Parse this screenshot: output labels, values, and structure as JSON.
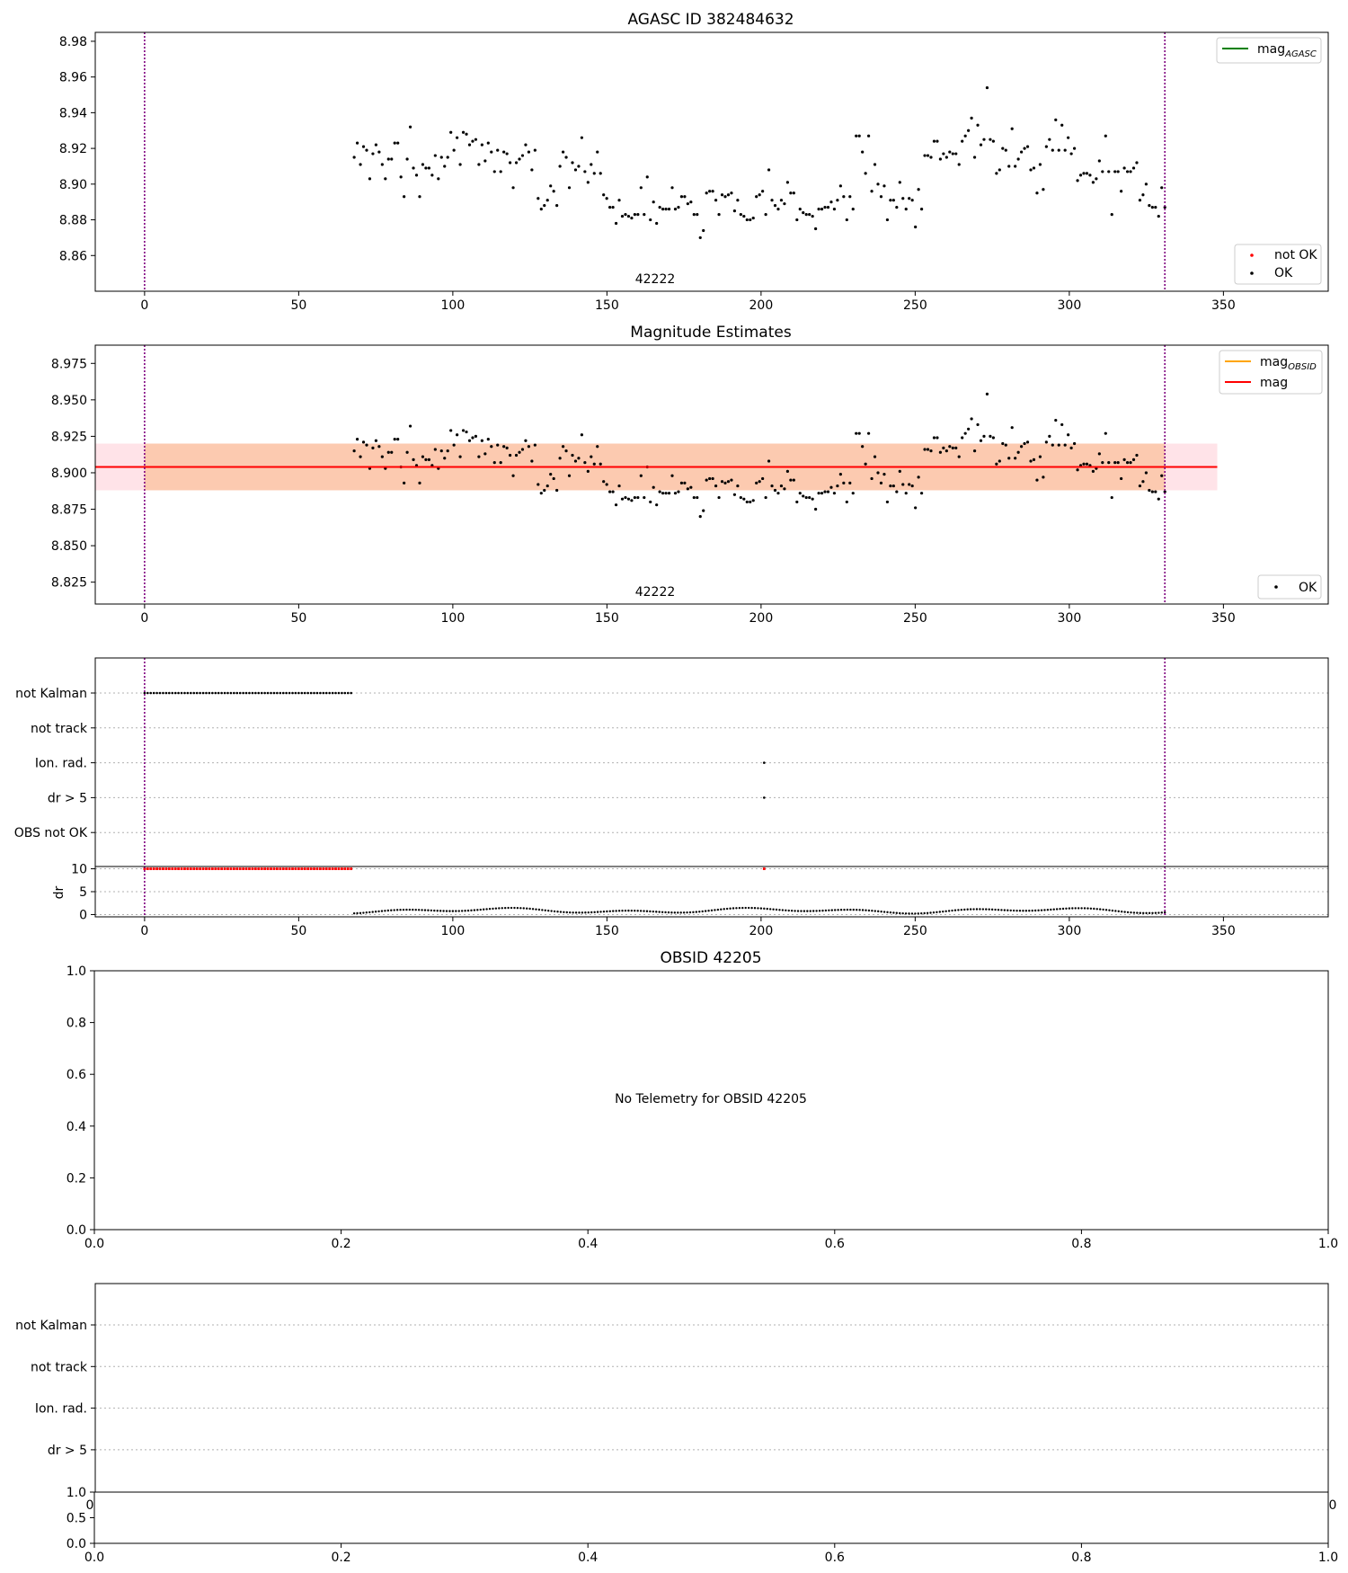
{
  "colors": {
    "ok": "#000000",
    "not_ok": "#ff0000",
    "mag_agasc": "#008000",
    "mag_obsid": "#ffa500",
    "mag": "#ff0000",
    "obs_band": "#fbbf98",
    "overall_band": "#ffe3e8",
    "vline": "#800080",
    "grid": "#b0b0b0"
  },
  "panel1": {
    "title": "AGASC ID 382484632",
    "obsid_label": "42222",
    "legend_line": {
      "text": "mag",
      "sub": "AGASC",
      "color_key": "mag_agasc"
    },
    "legend_points": [
      "not OK",
      "OK"
    ],
    "xticks": [
      "0",
      "50",
      "100",
      "150",
      "200",
      "250",
      "300",
      "350"
    ],
    "yticks": [
      "8.86",
      "8.88",
      "8.90",
      "8.92",
      "8.94",
      "8.96",
      "8.98"
    ]
  },
  "panel2": {
    "title": "Magnitude Estimates",
    "obsid_label": "42222",
    "legend_lines": [
      {
        "text": "mag",
        "sub": "OBSID",
        "color_key": "mag_obsid"
      },
      {
        "text": "mag",
        "sub": "",
        "color_key": "mag"
      }
    ],
    "legend_points": [
      "OK"
    ],
    "xticks": [
      "0",
      "50",
      "100",
      "150",
      "200",
      "250",
      "300",
      "350"
    ],
    "yticks": [
      "8.825",
      "8.850",
      "8.875",
      "8.900",
      "8.925",
      "8.950",
      "8.975"
    ]
  },
  "panel3": {
    "flags": [
      "not Kalman",
      "not track",
      "Ion. rad.",
      "dr > 5",
      "OBS not OK"
    ],
    "dr_label": "dr",
    "dr_yticks": [
      "0",
      "5",
      "10"
    ],
    "xticks": [
      "0",
      "50",
      "100",
      "150",
      "200",
      "250",
      "300",
      "350"
    ]
  },
  "panel4": {
    "title": "OBSID 42205",
    "message": "No Telemetry for OBSID 42205",
    "xticks": [
      "0.0",
      "0.2",
      "0.4",
      "0.6",
      "0.8",
      "1.0"
    ],
    "yticks": [
      "0.0",
      "0.2",
      "0.4",
      "0.6",
      "0.8",
      "1.0"
    ]
  },
  "panel5": {
    "flags": [
      "not Kalman",
      "not track",
      "Ion. rad.",
      "dr > 5"
    ],
    "overlap_tick_left": "0",
    "overlap_tick_right": "0",
    "yticks_bottom": [
      "0.0",
      "0.5",
      "1.0"
    ],
    "xticks": [
      "0.0",
      "0.2",
      "0.4",
      "0.6",
      "0.8",
      "1.0"
    ]
  },
  "chart_data": [
    {
      "type": "scatter",
      "title": "AGASC ID 382484632",
      "xlim": [
        -16,
        384
      ],
      "ylim": [
        8.84,
        8.985
      ],
      "vlines": [
        0,
        331
      ],
      "annotation": "42222",
      "series": [
        {
          "name": "OK",
          "x_start": 68,
          "x_end": 331,
          "y": [
            8.915,
            8.923,
            8.911,
            8.921,
            8.919,
            8.903,
            8.917,
            8.922,
            8.918,
            8.911,
            8.903,
            8.914,
            8.914,
            8.923,
            8.923,
            8.904,
            8.893,
            8.914,
            8.932,
            8.909,
            8.905,
            8.893,
            8.911,
            8.909,
            8.909,
            8.905,
            8.916,
            8.903,
            8.915,
            8.91,
            8.915,
            8.929,
            8.919,
            8.926,
            8.911,
            8.929,
            8.928,
            8.922,
            8.924,
            8.925,
            8.911,
            8.922,
            8.913,
            8.923,
            8.918,
            8.907,
            8.919,
            8.907,
            8.918,
            8.917,
            8.912,
            8.898,
            8.912,
            8.914,
            8.916,
            8.922,
            8.918,
            8.908,
            8.919,
            8.892,
            8.886,
            8.888,
            8.891,
            8.899,
            8.896,
            8.888,
            8.91,
            8.918,
            8.915,
            8.898,
            8.912,
            8.908,
            8.91,
            8.926,
            8.907,
            8.901,
            8.911,
            8.906,
            8.918,
            8.906,
            8.894,
            8.892,
            8.887,
            8.887,
            8.878,
            8.891,
            8.882,
            8.883,
            8.882,
            8.881,
            8.883,
            8.883,
            8.898,
            8.883,
            8.904,
            8.88,
            8.89,
            8.878,
            8.887,
            8.886,
            8.886,
            8.886,
            8.898,
            8.886,
            8.887,
            8.893,
            8.893,
            8.889,
            8.89,
            8.883,
            8.883,
            8.87,
            8.874,
            8.895,
            8.896,
            8.896,
            8.891,
            8.883,
            8.894,
            8.893,
            8.894,
            8.895,
            8.885,
            8.891,
            8.883,
            8.882,
            8.88,
            8.88,
            8.881,
            8.893,
            8.894,
            8.896,
            8.883,
            8.908,
            8.891,
            8.888,
            8.886,
            8.891,
            8.889,
            8.901,
            8.895,
            8.895,
            8.88,
            8.886,
            8.884,
            8.883,
            8.883,
            8.882,
            8.875,
            8.886,
            8.886,
            8.887,
            8.887,
            8.89,
            8.886,
            8.891,
            8.899,
            8.893,
            8.88,
            8.893,
            8.886,
            8.927,
            8.927,
            8.918,
            8.906,
            8.927,
            8.896,
            8.911,
            8.9,
            8.893,
            8.899,
            8.88,
            8.891,
            8.891,
            8.887,
            8.901,
            8.892,
            8.886,
            8.892,
            8.891,
            8.876,
            8.897,
            8.886,
            8.916,
            8.916,
            8.915,
            8.924,
            8.924,
            8.914,
            8.917,
            8.915,
            8.918,
            8.917,
            8.917,
            8.911,
            8.924,
            8.927,
            8.93,
            8.937,
            8.915,
            8.933,
            8.922,
            8.925,
            8.954,
            8.925,
            8.924,
            8.906,
            8.908,
            8.92,
            8.919,
            8.91,
            8.931,
            8.91,
            8.914,
            8.918,
            8.92,
            8.921,
            8.908,
            8.909,
            8.895,
            8.911,
            8.897,
            8.921,
            8.925,
            8.919,
            8.936,
            8.919,
            8.933,
            8.919,
            8.926,
            8.917,
            8.92,
            8.902,
            8.905,
            8.906,
            8.906,
            8.905,
            8.901,
            8.903,
            8.913,
            8.907,
            8.927,
            8.907,
            8.883,
            8.907,
            8.907,
            8.896,
            8.909,
            8.907,
            8.907,
            8.909,
            8.912,
            8.891,
            8.894,
            8.9,
            8.888,
            8.887,
            8.887,
            8.882,
            8.898,
            8.887
          ]
        },
        {
          "name": "not OK",
          "x": [],
          "y": []
        }
      ]
    },
    {
      "type": "scatter",
      "title": "Magnitude Estimates",
      "xlim": [
        -16,
        384
      ],
      "ylim": [
        8.81,
        8.9875
      ],
      "vlines": [
        0,
        331
      ],
      "annotation": "42222",
      "mag": 8.904,
      "mag_band": [
        8.888,
        8.92
      ],
      "mag_band_x": [
        -16,
        348
      ],
      "mag_obsid_band": [
        8.888,
        8.92
      ],
      "mag_obsid_band_x": [
        0,
        331
      ],
      "series": [
        {
          "name": "OK",
          "same_as_panel": 0
        }
      ]
    },
    {
      "type": "scatter",
      "title": "",
      "xlim": [
        -16,
        384
      ],
      "flags": {
        "not Kalman": {
          "x_start": 0,
          "x_end": 67
        },
        "not track": {
          "x": []
        },
        "Ion. rad.": {
          "x": [
            201
          ]
        },
        "dr > 5": {
          "x": [
            201
          ]
        },
        "OBS not OK": {
          "x": []
        }
      },
      "dr": {
        "ylim": [
          -0.5,
          10.5
        ],
        "clipped_value": 10,
        "clipped_x_start": 0,
        "clipped_x_end": 67,
        "clipped_extra_x": [
          201
        ],
        "x_start": 68,
        "x_end": 331,
        "typical_range": [
          0.2,
          1.5
        ]
      },
      "vlines": [
        0,
        331
      ]
    },
    {
      "type": "scatter",
      "title": "OBSID 42205",
      "xlim": [
        0,
        1
      ],
      "ylim": [
        0,
        1
      ],
      "message": "No Telemetry for OBSID 42205",
      "series": []
    },
    {
      "type": "scatter",
      "title": "",
      "xlim": [
        0,
        1
      ],
      "ylim": [
        0,
        1
      ],
      "flags": [
        "not Kalman",
        "not track",
        "Ion. rad.",
        "dr > 5"
      ],
      "series": []
    }
  ]
}
